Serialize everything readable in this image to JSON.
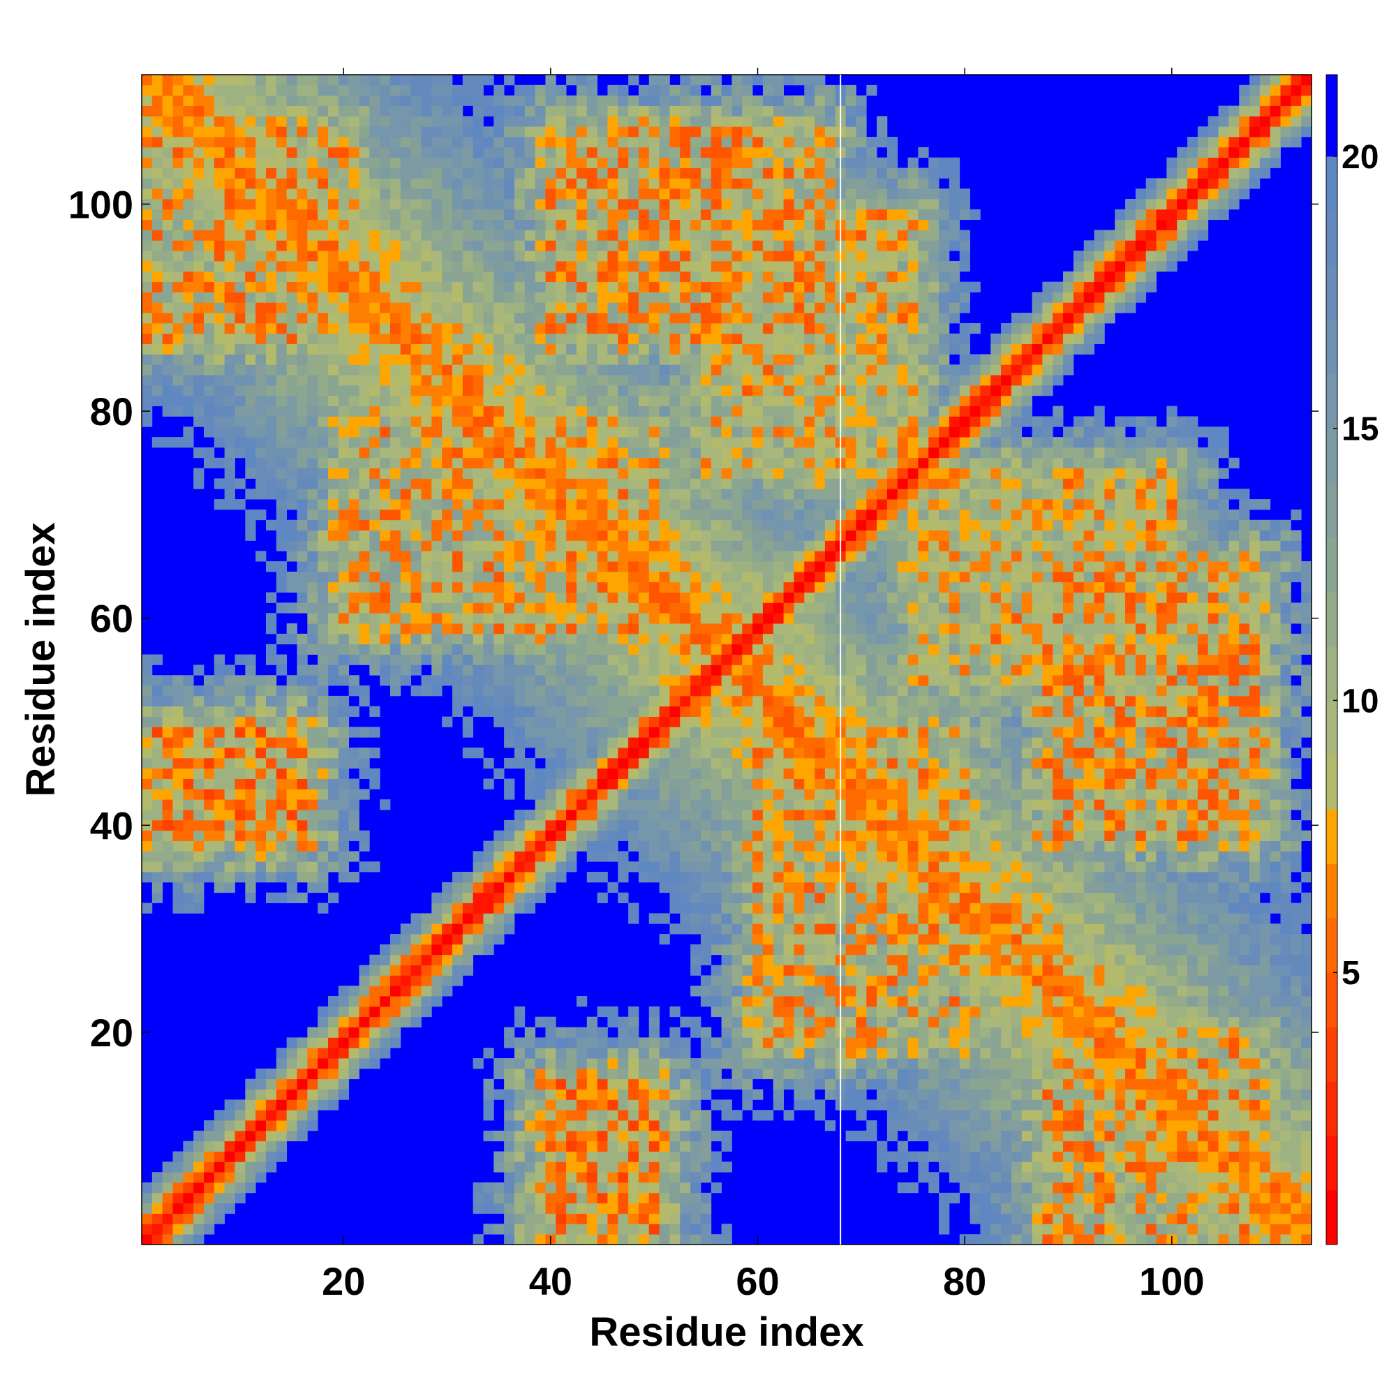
{
  "chart_data": {
    "type": "heatmap",
    "title": "",
    "xlabel": "Residue index",
    "ylabel": "Residue index",
    "n_residues": 113,
    "xlim": [
      1,
      113
    ],
    "ylim": [
      1,
      113
    ],
    "x_ticks": [
      20,
      40,
      60,
      80,
      100
    ],
    "y_ticks": [
      20,
      40,
      60,
      80,
      100
    ],
    "x_tick_labels": [
      "20",
      "40",
      "60",
      "80",
      "100"
    ],
    "y_tick_labels": [
      "20",
      "40",
      "60",
      "80",
      "100"
    ],
    "gap_at_residue": 68,
    "symmetric": true,
    "diagonal_value": 0,
    "features": [
      {
        "kind": "diagonal-band",
        "description_values": "distance ~3.8 per residue step along the sequence"
      },
      {
        "kind": "anti-diagonal-sheet",
        "i_range": [
          1,
          113
        ],
        "j_range": [
          1,
          113
        ],
        "min_distance": 4.5
      },
      {
        "kind": "contact-patch",
        "i": [
          1,
          16
        ],
        "j": [
          40,
          50
        ],
        "min_distance": 4.6
      },
      {
        "kind": "contact-patch",
        "i": [
          1,
          20
        ],
        "j": [
          88,
          108
        ],
        "min_distance": 5.5
      },
      {
        "kind": "contact-patch",
        "i": [
          40,
          66
        ],
        "j": [
          88,
          108
        ],
        "min_distance": 5.5
      },
      {
        "kind": "contact-patch",
        "i": [
          20,
          50
        ],
        "j": [
          60,
          80
        ],
        "min_distance": 5.8
      }
    ],
    "colorbar": {
      "min": 0,
      "max": 21.5,
      "ticks": [
        5,
        10,
        15,
        20
      ],
      "tick_labels": [
        "5",
        "10",
        "15",
        "20"
      ],
      "levels": [
        {
          "upper": 1,
          "color": "#ff0000"
        },
        {
          "upper": 2,
          "color": "#ff1500"
        },
        {
          "upper": 3,
          "color": "#ff2b00"
        },
        {
          "upper": 4,
          "color": "#ff4000"
        },
        {
          "upper": 5,
          "color": "#ff5500"
        },
        {
          "upper": 6,
          "color": "#ff6a00"
        },
        {
          "upper": 7,
          "color": "#ff8000"
        },
        {
          "upper": 8,
          "color": "#ffa500"
        },
        {
          "upper": 9,
          "color": "#b4ba6b"
        },
        {
          "upper": 10,
          "color": "#a9b77a"
        },
        {
          "upper": 11,
          "color": "#9eb281"
        },
        {
          "upper": 12,
          "color": "#94ab8a"
        },
        {
          "upper": 13,
          "color": "#8ba593"
        },
        {
          "upper": 14,
          "color": "#849e9a"
        },
        {
          "upper": 15,
          "color": "#7d9ba3"
        },
        {
          "upper": 16,
          "color": "#7596ab"
        },
        {
          "upper": 17,
          "color": "#6f92b2"
        },
        {
          "upper": 18,
          "color": "#698cb8"
        },
        {
          "upper": 19,
          "color": "#6389bd"
        },
        {
          "upper": 20,
          "color": "#5f87c2"
        },
        {
          "upper": 21.5,
          "color": "#0000ff"
        }
      ]
    },
    "background_color": "#0000ff"
  }
}
